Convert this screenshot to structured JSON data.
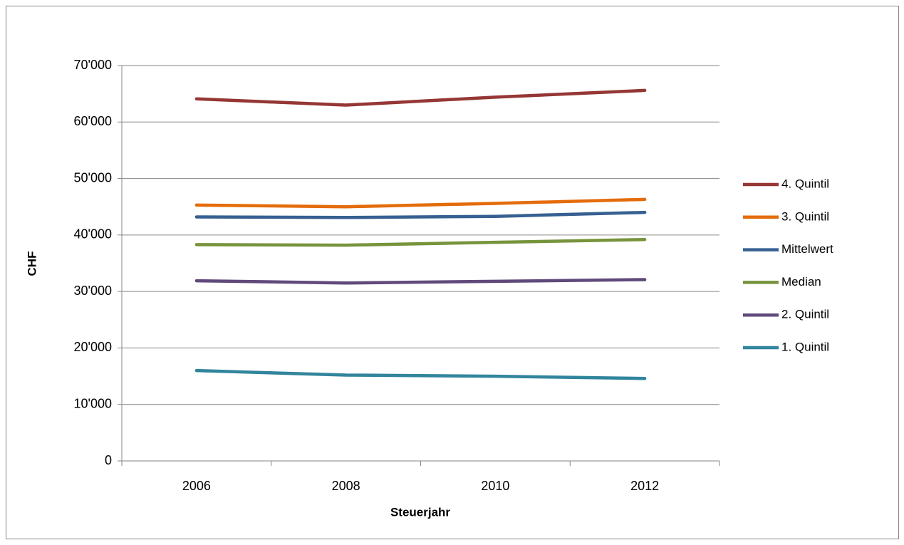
{
  "chart_data": {
    "type": "line",
    "x_label": "Steuerjahr",
    "y_label": "CHF",
    "categories": [
      "2006",
      "2008",
      "2010",
      "2012"
    ],
    "series": [
      {
        "name": "4. Quintil",
        "color": "#953735",
        "values": [
          64100,
          63000,
          64400,
          65600
        ]
      },
      {
        "name": "3. Quintil",
        "color": "#e46c0a",
        "values": [
          45300,
          45000,
          45600,
          46300
        ]
      },
      {
        "name": "Mittelwert",
        "color": "#376092",
        "values": [
          43200,
          43100,
          43300,
          44000
        ]
      },
      {
        "name": "Median",
        "color": "#77933c",
        "values": [
          38300,
          38200,
          38700,
          39200
        ]
      },
      {
        "name": "2. Quintil",
        "color": "#604a7b",
        "values": [
          31900,
          31500,
          31800,
          32100
        ]
      },
      {
        "name": "1. Quintil",
        "color": "#31859c",
        "values": [
          16000,
          15200,
          15000,
          14600
        ]
      }
    ],
    "ylim": [
      0,
      70000
    ],
    "yticks": [
      0,
      {
        "value": 10000,
        "label": "10'000"
      },
      {
        "value": 20000,
        "label": "20'000"
      },
      {
        "value": 30000,
        "label": "30'000"
      },
      {
        "value": 40000,
        "label": "40'000"
      },
      {
        "value": 50000,
        "label": "50'000"
      },
      {
        "value": 60000,
        "label": "60'000"
      },
      {
        "value": 70000,
        "label": "70'000"
      }
    ],
    "grid": true,
    "legend": "right"
  }
}
